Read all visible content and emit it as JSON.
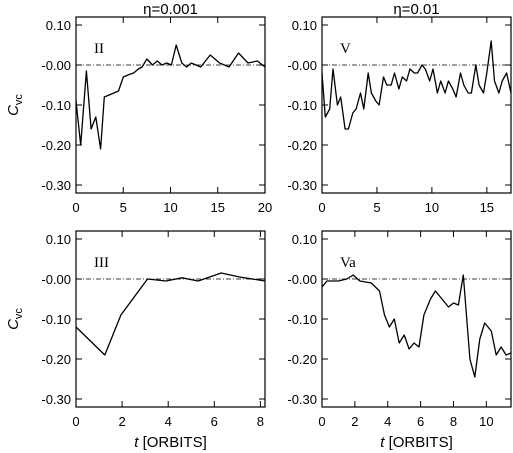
{
  "chart_data": [
    {
      "type": "line",
      "title": "η=0.001",
      "label": "II",
      "xlabel": "",
      "ylabel": "C_vc",
      "xlim": [
        0,
        20
      ],
      "ylim": [
        -0.32,
        0.12
      ],
      "xticks": [
        0,
        5,
        10,
        15,
        20
      ],
      "xtick_labels": [
        "0",
        "5",
        "10",
        "15",
        "20"
      ],
      "yticks": [
        0.1,
        0.0,
        -0.1,
        -0.2,
        -0.3
      ],
      "ytick_labels": [
        "0.10",
        "-0.00",
        "-0.10",
        "-0.20",
        "-0.30"
      ],
      "reference_line": 0,
      "x": [
        0,
        0.5,
        1.1,
        1.6,
        2.1,
        2.6,
        3.0,
        3.5,
        4.0,
        4.5,
        5.0,
        5.5,
        6.1,
        6.6,
        7.0,
        7.5,
        8.1,
        8.6,
        9.1,
        9.6,
        10.1,
        10.6,
        11.2,
        11.7,
        12.2,
        12.7,
        13.2,
        14.2,
        15.2,
        16.2,
        17.2,
        18.2,
        19.2,
        20.0
      ],
      "y": [
        -0.09,
        -0.2,
        -0.015,
        -0.16,
        -0.13,
        -0.21,
        -0.08,
        -0.075,
        -0.07,
        -0.065,
        -0.03,
        -0.025,
        -0.02,
        -0.01,
        -0.005,
        0.015,
        0.0,
        0.01,
        0.0,
        0.005,
        0.0,
        0.05,
        0.005,
        -0.005,
        0.005,
        0.0,
        -0.005,
        0.025,
        0.005,
        -0.005,
        0.03,
        0.005,
        0.01,
        -0.005
      ]
    },
    {
      "type": "line",
      "title": "η=0.01",
      "label": "V",
      "xlabel": "",
      "ylabel": "",
      "xlim": [
        0,
        17.2
      ],
      "ylim": [
        -0.32,
        0.12
      ],
      "xticks": [
        0,
        5,
        10,
        15
      ],
      "xtick_labels": [
        "0",
        "5",
        "10",
        "15"
      ],
      "yticks": [
        0.1,
        0.0,
        -0.1,
        -0.2,
        -0.3
      ],
      "ytick_labels": [
        "0.10",
        "-0.00",
        "-0.10",
        "-0.20",
        "-0.30"
      ],
      "reference_line": 0,
      "x": [
        0,
        0.3,
        0.7,
        1.0,
        1.4,
        1.7,
        2.1,
        2.4,
        2.8,
        3.1,
        3.5,
        3.8,
        4.2,
        4.5,
        4.9,
        5.2,
        5.6,
        5.9,
        6.3,
        6.6,
        7.0,
        7.3,
        7.7,
        8.0,
        8.4,
        8.7,
        9.1,
        9.4,
        9.8,
        10.1,
        10.5,
        10.8,
        11.2,
        11.5,
        11.9,
        12.2,
        12.6,
        12.9,
        13.3,
        13.6,
        14.0,
        14.3,
        14.7,
        15.0,
        15.4,
        15.7,
        16.1,
        16.4,
        16.8,
        17.2
      ],
      "y": [
        -0.02,
        -0.13,
        -0.11,
        -0.01,
        -0.1,
        -0.08,
        -0.16,
        -0.16,
        -0.12,
        -0.11,
        -0.07,
        -0.11,
        -0.02,
        -0.07,
        -0.09,
        -0.1,
        -0.03,
        -0.05,
        -0.05,
        -0.02,
        -0.06,
        -0.03,
        -0.04,
        -0.01,
        -0.02,
        -0.02,
        0.0,
        -0.01,
        -0.04,
        -0.01,
        -0.07,
        -0.04,
        -0.07,
        -0.04,
        -0.06,
        -0.08,
        -0.02,
        -0.05,
        -0.07,
        -0.07,
        0.0,
        -0.05,
        -0.07,
        -0.02,
        0.06,
        -0.04,
        -0.07,
        -0.04,
        -0.02,
        -0.07
      ]
    },
    {
      "type": "line",
      "title": "",
      "label": "III",
      "xlabel": "t [ORBITS]",
      "ylabel": "C_vc",
      "xlim": [
        0,
        8.2
      ],
      "ylim": [
        -0.32,
        0.12
      ],
      "xticks": [
        0,
        2,
        4,
        6,
        8
      ],
      "xtick_labels": [
        "0",
        "2",
        "4",
        "6",
        "8"
      ],
      "yticks": [
        0.1,
        0.0,
        -0.1,
        -0.2,
        -0.3
      ],
      "ytick_labels": [
        "0.10",
        "-0.00",
        "-0.10",
        "-0.20",
        "-0.30"
      ],
      "reference_line": 0,
      "x": [
        0,
        1.25,
        1.95,
        3.1,
        3.9,
        4.6,
        5.3,
        6.3,
        7.1,
        8.2
      ],
      "y": [
        -0.12,
        -0.19,
        -0.09,
        0.0,
        -0.005,
        0.003,
        -0.005,
        0.015,
        0.005,
        -0.005
      ]
    },
    {
      "type": "line",
      "title": "",
      "label": "Va",
      "xlabel": "t [ORBITS]",
      "ylabel": "",
      "xlim": [
        0,
        11.5
      ],
      "ylim": [
        -0.32,
        0.12
      ],
      "xticks": [
        0,
        2,
        4,
        6,
        8,
        10
      ],
      "xtick_labels": [
        "0",
        "2",
        "4",
        "6",
        "8",
        "10"
      ],
      "yticks": [
        0.1,
        0.0,
        -0.1,
        -0.2,
        -0.3
      ],
      "ytick_labels": [
        "0.10",
        "-0.00",
        "-0.10",
        "-0.20",
        "-0.30"
      ],
      "reference_line": 0,
      "x": [
        0,
        0.3,
        1.0,
        1.5,
        1.9,
        2.3,
        3.0,
        3.5,
        3.8,
        4.1,
        4.4,
        4.7,
        5.0,
        5.3,
        5.6,
        5.9,
        6.2,
        6.6,
        6.9,
        7.3,
        7.7,
        8.0,
        8.3,
        8.6,
        9.0,
        9.3,
        9.6,
        9.9,
        10.3,
        10.6,
        10.9,
        11.2,
        11.5
      ],
      "y": [
        -0.02,
        -0.005,
        -0.005,
        0.0,
        0.01,
        -0.005,
        -0.01,
        -0.03,
        -0.09,
        -0.12,
        -0.1,
        -0.16,
        -0.14,
        -0.175,
        -0.16,
        -0.17,
        -0.09,
        -0.05,
        -0.03,
        -0.05,
        -0.07,
        -0.06,
        -0.065,
        0.01,
        -0.2,
        -0.245,
        -0.15,
        -0.11,
        -0.13,
        -0.19,
        -0.17,
        -0.19,
        -0.185
      ]
    }
  ]
}
